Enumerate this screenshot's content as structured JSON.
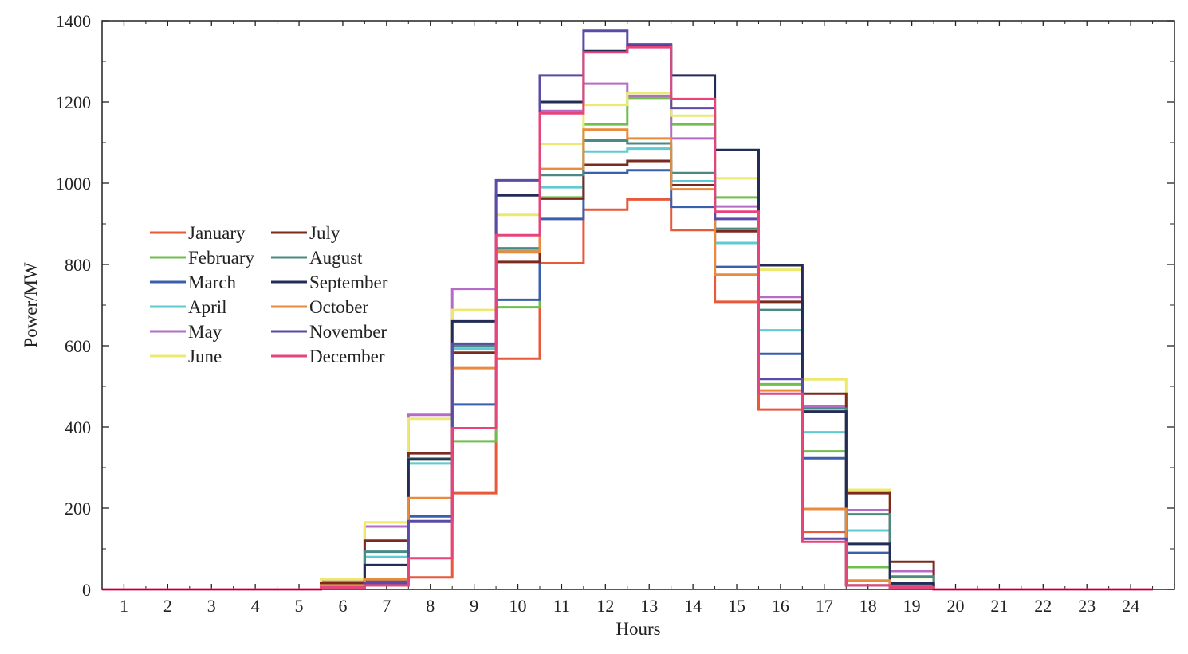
{
  "chart_data": {
    "type": "line",
    "style": "step",
    "xlabel": "Hours",
    "ylabel": "Power/MW",
    "xlim": [
      0.5,
      25
    ],
    "ylim": [
      0,
      1400
    ],
    "x_ticks": [
      1,
      2,
      3,
      4,
      5,
      6,
      7,
      8,
      9,
      10,
      11,
      12,
      13,
      14,
      15,
      16,
      17,
      18,
      19,
      20,
      21,
      22,
      23,
      24
    ],
    "y_ticks": [
      0,
      200,
      400,
      600,
      800,
      1000,
      1200,
      1400
    ],
    "x": [
      1,
      2,
      3,
      4,
      5,
      6,
      7,
      8,
      9,
      10,
      11,
      12,
      13,
      14,
      15,
      16,
      17,
      18,
      19,
      20,
      21,
      22,
      23,
      24
    ],
    "series": [
      {
        "name": "January",
        "color": "#e8593c",
        "values": [
          0,
          0,
          0,
          0,
          0,
          3,
          10,
          30,
          237,
          568,
          803,
          935,
          960,
          885,
          708,
          443,
          142,
          10,
          5,
          0,
          0,
          0,
          0,
          0
        ]
      },
      {
        "name": "February",
        "color": "#6fbf4f",
        "values": [
          0,
          0,
          0,
          0,
          0,
          10,
          60,
          320,
          365,
          695,
          965,
          1145,
          1210,
          1145,
          965,
          505,
          340,
          55,
          10,
          0,
          0,
          0,
          0,
          0
        ]
      },
      {
        "name": "March",
        "color": "#3a5fad",
        "values": [
          0,
          0,
          0,
          0,
          0,
          10,
          20,
          180,
          455,
          713,
          912,
          1025,
          1032,
          942,
          794,
          580,
          323,
          90,
          12,
          0,
          0,
          0,
          0,
          0
        ]
      },
      {
        "name": "April",
        "color": "#5ecad4",
        "values": [
          0,
          0,
          0,
          0,
          0,
          10,
          80,
          310,
          593,
          835,
          990,
          1078,
          1085,
          1005,
          853,
          638,
          387,
          145,
          15,
          0,
          0,
          0,
          0,
          0
        ]
      },
      {
        "name": "May",
        "color": "#b56cc6",
        "values": [
          0,
          0,
          0,
          0,
          0,
          20,
          155,
          430,
          740,
          830,
          1178,
          1245,
          1215,
          1110,
          943,
          720,
          450,
          195,
          45,
          0,
          0,
          0,
          0,
          0
        ]
      },
      {
        "name": "June",
        "color": "#ece870",
        "values": [
          0,
          0,
          0,
          0,
          0,
          25,
          165,
          420,
          688,
          922,
          1097,
          1193,
          1222,
          1166,
          1012,
          787,
          517,
          245,
          30,
          0,
          0,
          0,
          0,
          0
        ]
      },
      {
        "name": "July",
        "color": "#7a2a1e",
        "values": [
          0,
          0,
          0,
          0,
          0,
          15,
          120,
          335,
          583,
          806,
          962,
          1045,
          1055,
          995,
          882,
          708,
          482,
          237,
          68,
          0,
          0,
          0,
          0,
          0
        ]
      },
      {
        "name": "August",
        "color": "#4a8a84",
        "values": [
          0,
          0,
          0,
          0,
          0,
          10,
          93,
          322,
          600,
          840,
          1020,
          1105,
          1098,
          1025,
          888,
          688,
          445,
          185,
          32,
          0,
          0,
          0,
          0,
          0
        ]
      },
      {
        "name": "September",
        "color": "#232c55",
        "values": [
          0,
          0,
          0,
          0,
          0,
          10,
          60,
          320,
          660,
          970,
          1200,
          1325,
          1340,
          1265,
          1082,
          798,
          438,
          112,
          15,
          0,
          0,
          0,
          0,
          0
        ]
      },
      {
        "name": "October",
        "color": "#ea8a3c",
        "values": [
          0,
          0,
          0,
          0,
          0,
          10,
          25,
          225,
          545,
          832,
          1035,
          1132,
          1110,
          985,
          775,
          490,
          198,
          22,
          5,
          0,
          0,
          0,
          0,
          0
        ]
      },
      {
        "name": "November",
        "color": "#5a4ba6",
        "values": [
          0,
          0,
          0,
          0,
          0,
          5,
          15,
          168,
          605,
          1007,
          1265,
          1375,
          1342,
          1185,
          912,
          518,
          125,
          10,
          5,
          0,
          0,
          0,
          0,
          0
        ]
      },
      {
        "name": "December",
        "color": "#e6457a",
        "values": [
          0,
          0,
          0,
          0,
          0,
          5,
          10,
          77,
          397,
          872,
          1172,
          1322,
          1335,
          1207,
          930,
          482,
          117,
          10,
          5,
          0,
          0,
          0,
          0,
          0
        ]
      }
    ]
  }
}
